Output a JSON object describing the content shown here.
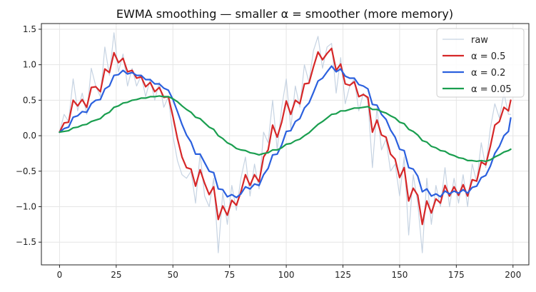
{
  "chart_data": {
    "type": "line",
    "title": "EWMA smoothing — smaller α = smoother (more memory)",
    "xlabel": "",
    "ylabel": "",
    "xlim": [
      -8,
      207
    ],
    "ylim": [
      -1.82,
      1.58
    ],
    "xticks": [
      0,
      25,
      50,
      75,
      100,
      125,
      150,
      175,
      200
    ],
    "yticks": [
      -1.5,
      -1.0,
      -0.5,
      0.0,
      0.5,
      1.0,
      1.5
    ],
    "ytick_labels": [
      "−1.5",
      "−1.0",
      "−0.5",
      "0.0",
      "0.5",
      "1.0",
      "1.5"
    ],
    "grid": true,
    "legend_position": "top-right",
    "x": [
      0,
      2,
      4,
      6,
      8,
      10,
      12,
      14,
      16,
      18,
      20,
      22,
      24,
      26,
      28,
      30,
      32,
      34,
      36,
      38,
      40,
      42,
      44,
      46,
      48,
      50,
      52,
      54,
      56,
      58,
      60,
      62,
      64,
      66,
      68,
      70,
      72,
      74,
      76,
      78,
      80,
      82,
      84,
      86,
      88,
      90,
      92,
      94,
      96,
      98,
      100,
      102,
      104,
      106,
      108,
      110,
      112,
      114,
      116,
      118,
      120,
      122,
      124,
      126,
      128,
      130,
      132,
      134,
      136,
      138,
      140,
      142,
      144,
      146,
      148,
      150,
      152,
      154,
      156,
      158,
      160,
      162,
      164,
      166,
      168,
      170,
      172,
      174,
      176,
      178,
      180,
      182,
      184,
      186,
      188,
      190,
      192,
      194,
      196,
      198,
      199
    ],
    "series": [
      {
        "name": "raw",
        "color": "#c6d3e2",
        "width": 1.2,
        "values": [
          0.05,
          0.3,
          0.2,
          0.8,
          0.35,
          0.6,
          0.3,
          0.95,
          0.7,
          0.55,
          1.25,
          0.85,
          1.45,
          0.9,
          1.15,
          0.7,
          0.95,
          0.7,
          0.85,
          0.55,
          0.8,
          0.5,
          0.75,
          0.4,
          0.55,
          0.0,
          -0.35,
          -0.55,
          -0.6,
          -0.5,
          -0.95,
          -0.25,
          -0.85,
          -1.0,
          -0.6,
          -1.65,
          -0.8,
          -1.25,
          -0.7,
          -1.05,
          -0.6,
          -0.3,
          -0.85,
          -0.4,
          -0.75,
          0.05,
          -0.1,
          0.5,
          -0.2,
          0.4,
          0.8,
          0.1,
          0.7,
          0.4,
          1.0,
          0.75,
          1.2,
          1.4,
          0.95,
          1.25,
          1.3,
          0.6,
          1.1,
          0.45,
          0.7,
          0.8,
          0.35,
          0.6,
          0.5,
          -0.45,
          0.4,
          -0.2,
          -0.05,
          -0.5,
          -0.4,
          -0.85,
          -0.3,
          -1.4,
          -0.55,
          -0.95,
          -1.65,
          -0.6,
          -1.25,
          -0.7,
          -1.0,
          -0.45,
          -1.0,
          -0.6,
          -0.95,
          -0.55,
          -1.0,
          -0.4,
          -0.65,
          -0.1,
          -0.45,
          0.1,
          0.45,
          0.25,
          0.6,
          0.3,
          0.3
        ]
      },
      {
        "name": "α = 0.5",
        "color": "#d62728",
        "width": 2.2,
        "values": [
          0.05,
          0.18,
          0.19,
          0.5,
          0.42,
          0.51,
          0.4,
          0.68,
          0.69,
          0.62,
          0.94,
          0.89,
          1.17,
          1.03,
          1.09,
          0.9,
          0.92,
          0.81,
          0.83,
          0.69,
          0.75,
          0.62,
          0.68,
          0.54,
          0.55,
          0.27,
          -0.04,
          -0.3,
          -0.45,
          -0.47,
          -0.71,
          -0.48,
          -0.67,
          -0.83,
          -0.72,
          -1.18,
          -0.99,
          -1.12,
          -0.91,
          -0.98,
          -0.79,
          -0.55,
          -0.7,
          -0.55,
          -0.65,
          -0.3,
          -0.2,
          0.15,
          -0.02,
          0.19,
          0.49,
          0.3,
          0.5,
          0.45,
          0.73,
          0.74,
          0.97,
          1.18,
          1.07,
          1.16,
          1.23,
          0.92,
          1.01,
          0.73,
          0.71,
          0.76,
          0.55,
          0.58,
          0.54,
          0.05,
          0.22,
          0.01,
          -0.02,
          -0.26,
          -0.33,
          -0.59,
          -0.45,
          -0.92,
          -0.74,
          -0.84,
          -1.25,
          -0.92,
          -1.09,
          -0.89,
          -0.95,
          -0.7,
          -0.85,
          -0.72,
          -0.84,
          -0.69,
          -0.85,
          -0.62,
          -0.64,
          -0.37,
          -0.41,
          -0.15,
          0.15,
          0.2,
          0.4,
          0.35,
          0.5
        ]
      },
      {
        "name": "α = 0.2",
        "color": "#2b60de",
        "width": 2.2,
        "values": [
          0.05,
          0.1,
          0.12,
          0.26,
          0.28,
          0.34,
          0.33,
          0.45,
          0.5,
          0.51,
          0.66,
          0.7,
          0.85,
          0.86,
          0.92,
          0.87,
          0.89,
          0.85,
          0.85,
          0.79,
          0.79,
          0.73,
          0.73,
          0.67,
          0.64,
          0.51,
          0.34,
          0.16,
          0.01,
          -0.09,
          -0.26,
          -0.26,
          -0.38,
          -0.5,
          -0.52,
          -0.75,
          -0.76,
          -0.86,
          -0.83,
          -0.87,
          -0.82,
          -0.72,
          -0.75,
          -0.68,
          -0.7,
          -0.55,
          -0.46,
          -0.27,
          -0.26,
          -0.13,
          0.06,
          0.07,
          0.2,
          0.24,
          0.39,
          0.46,
          0.61,
          0.77,
          0.81,
          0.9,
          0.98,
          0.9,
          0.94,
          0.84,
          0.81,
          0.81,
          0.72,
          0.7,
          0.66,
          0.44,
          0.43,
          0.3,
          0.23,
          0.08,
          -0.02,
          -0.19,
          -0.21,
          -0.45,
          -0.47,
          -0.57,
          -0.79,
          -0.75,
          -0.85,
          -0.82,
          -0.86,
          -0.78,
          -0.82,
          -0.78,
          -0.81,
          -0.76,
          -0.81,
          -0.73,
          -0.71,
          -0.59,
          -0.56,
          -0.43,
          -0.25,
          -0.15,
          0.0,
          0.06,
          0.25
        ]
      },
      {
        "name": "α = 0.05",
        "color": "#1a9e4f",
        "width": 2.2,
        "values": [
          0.05,
          0.06,
          0.07,
          0.11,
          0.12,
          0.15,
          0.16,
          0.2,
          0.22,
          0.24,
          0.3,
          0.33,
          0.4,
          0.42,
          0.46,
          0.47,
          0.5,
          0.51,
          0.53,
          0.53,
          0.55,
          0.55,
          0.56,
          0.55,
          0.55,
          0.52,
          0.48,
          0.42,
          0.37,
          0.33,
          0.26,
          0.24,
          0.18,
          0.12,
          0.09,
          0.0,
          -0.04,
          -0.1,
          -0.13,
          -0.18,
          -0.2,
          -0.21,
          -0.24,
          -0.25,
          -0.27,
          -0.25,
          -0.24,
          -0.2,
          -0.2,
          -0.17,
          -0.12,
          -0.11,
          -0.07,
          -0.05,
          0.0,
          0.04,
          0.1,
          0.16,
          0.2,
          0.25,
          0.3,
          0.31,
          0.35,
          0.35,
          0.37,
          0.39,
          0.39,
          0.4,
          0.41,
          0.37,
          0.37,
          0.34,
          0.32,
          0.28,
          0.25,
          0.19,
          0.17,
          0.09,
          0.06,
          0.01,
          -0.07,
          -0.09,
          -0.15,
          -0.17,
          -0.21,
          -0.22,
          -0.26,
          -0.28,
          -0.31,
          -0.32,
          -0.35,
          -0.35,
          -0.36,
          -0.35,
          -0.36,
          -0.34,
          -0.3,
          -0.27,
          -0.23,
          -0.21,
          -0.19
        ]
      }
    ]
  }
}
